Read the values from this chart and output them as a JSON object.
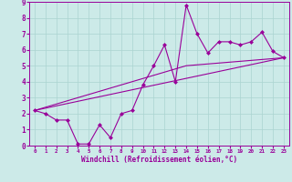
{
  "title": "",
  "xlabel": "Windchill (Refroidissement éolien,°C)",
  "ylabel": "",
  "xlim": [
    -0.5,
    23.5
  ],
  "ylim": [
    0,
    9
  ],
  "xticks": [
    0,
    1,
    2,
    3,
    4,
    5,
    6,
    7,
    8,
    9,
    10,
    11,
    12,
    13,
    14,
    15,
    16,
    17,
    18,
    19,
    20,
    21,
    22,
    23
  ],
  "yticks": [
    0,
    1,
    2,
    3,
    4,
    5,
    6,
    7,
    8,
    9
  ],
  "bg_color": "#cceae8",
  "line_color": "#990099",
  "grid_color": "#aad4d0",
  "data_x": [
    0,
    1,
    2,
    3,
    4,
    5,
    6,
    7,
    8,
    9,
    10,
    11,
    12,
    13,
    14,
    15,
    16,
    17,
    18,
    19,
    20,
    21,
    22,
    23
  ],
  "data_y": [
    2.2,
    2.0,
    1.6,
    1.6,
    0.1,
    0.1,
    1.3,
    0.5,
    2.0,
    2.2,
    3.8,
    5.0,
    6.3,
    4.0,
    8.8,
    7.0,
    5.8,
    6.5,
    6.5,
    6.3,
    6.5,
    7.1,
    5.9,
    5.5
  ],
  "trend1_x": [
    0,
    23
  ],
  "trend1_y": [
    2.2,
    5.5
  ],
  "trend2_x": [
    0,
    14,
    23
  ],
  "trend2_y": [
    2.2,
    5.0,
    5.5
  ],
  "marker_size": 2.5,
  "xtick_fontsize": 4.2,
  "ytick_fontsize": 5.5,
  "xlabel_fontsize": 5.5
}
